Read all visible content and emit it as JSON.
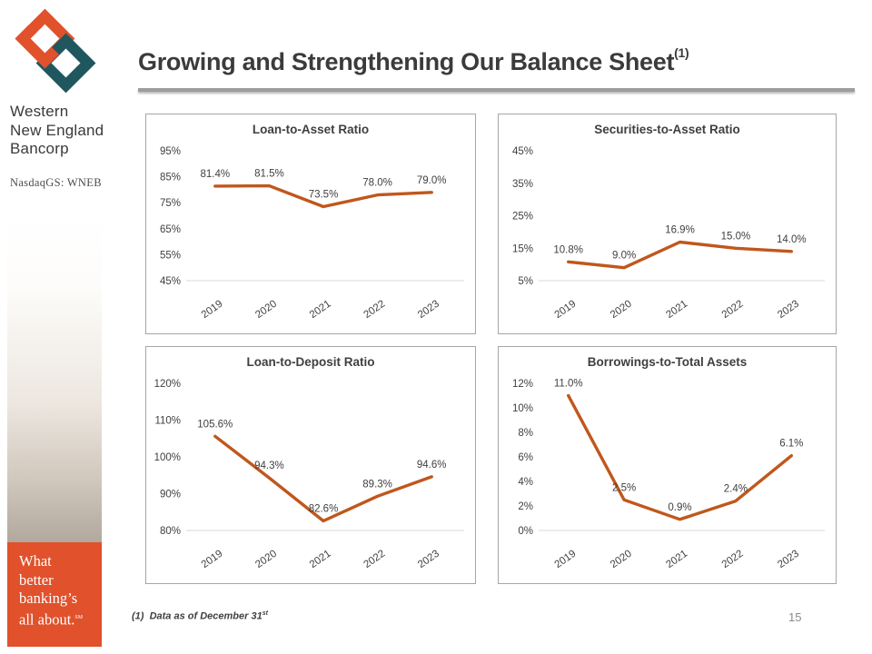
{
  "slide": {
    "title": "Growing and Strengthening Our Balance Sheet",
    "title_superscript": "(1)",
    "footnote_marker": "(1)",
    "footnote_text": "Data as of December 31",
    "footnote_superscript": "st",
    "page_number": "15"
  },
  "branding": {
    "company_lines": [
      "Western",
      "New England",
      "Bancorp"
    ],
    "ticker": "NasdaqGS: WNEB",
    "tagline_lines": [
      "What",
      "better",
      "banking’s",
      "all about."
    ],
    "tagline_mark": "SM",
    "logo_icon": "interlocked-diamonds-logo",
    "colors": {
      "orange": "#e0512c",
      "teal": "#20575f",
      "chart_line": "#c0571c"
    }
  },
  "chart_data": [
    {
      "type": "line",
      "title": "Loan-to-Asset Ratio",
      "categories": [
        "2019",
        "2020",
        "2021",
        "2022",
        "2023"
      ],
      "values": [
        81.4,
        81.5,
        73.5,
        78.0,
        79.0
      ],
      "point_labels": [
        "81.4%",
        "81.5%",
        "73.5%",
        "78.0%",
        "79.0%"
      ],
      "yticks": [
        95,
        85,
        75,
        65,
        55,
        45
      ],
      "ytick_labels": [
        "95%",
        "85%",
        "75%",
        "65%",
        "55%",
        "45%"
      ],
      "ylim": [
        45,
        95
      ],
      "grid": "baseline-only",
      "legend": "none",
      "line_color": "#c0571c"
    },
    {
      "type": "line",
      "title": "Securities-to-Asset Ratio",
      "categories": [
        "2019",
        "2020",
        "2021",
        "2022",
        "2023"
      ],
      "values": [
        10.8,
        9.0,
        16.9,
        15.0,
        14.0
      ],
      "point_labels": [
        "10.8%",
        "9.0%",
        "16.9%",
        "15.0%",
        "14.0%"
      ],
      "yticks": [
        45,
        35,
        25,
        15,
        5
      ],
      "ytick_labels": [
        "45%",
        "35%",
        "25%",
        "15%",
        "5%"
      ],
      "ylim": [
        5,
        45
      ],
      "grid": "baseline-only",
      "legend": "none",
      "line_color": "#c0571c"
    },
    {
      "type": "line",
      "title": "Loan-to-Deposit Ratio",
      "categories": [
        "2019",
        "2020",
        "2021",
        "2022",
        "2023"
      ],
      "values": [
        105.6,
        94.3,
        82.6,
        89.3,
        94.6
      ],
      "point_labels": [
        "105.6%",
        "94.3%",
        "82.6%",
        "89.3%",
        "94.6%"
      ],
      "yticks": [
        120,
        110,
        100,
        90,
        80
      ],
      "ytick_labels": [
        "120%",
        "110%",
        "100%",
        "90%",
        "80%"
      ],
      "ylim": [
        80,
        120
      ],
      "grid": "baseline-only",
      "legend": "none",
      "line_color": "#c0571c"
    },
    {
      "type": "line",
      "title": "Borrowings-to-Total Assets",
      "categories": [
        "2019",
        "2020",
        "2021",
        "2022",
        "2023"
      ],
      "values": [
        11.0,
        2.5,
        0.9,
        2.4,
        6.1
      ],
      "point_labels": [
        "11.0%",
        "2.5%",
        "0.9%",
        "2.4%",
        "6.1%"
      ],
      "yticks": [
        12,
        10,
        8,
        6,
        4,
        2,
        0
      ],
      "ytick_labels": [
        "12%",
        "10%",
        "8%",
        "6%",
        "4%",
        "2%",
        "0%"
      ],
      "ylim": [
        0,
        12
      ],
      "grid": "baseline-only",
      "legend": "none",
      "line_color": "#c0571c"
    }
  ]
}
